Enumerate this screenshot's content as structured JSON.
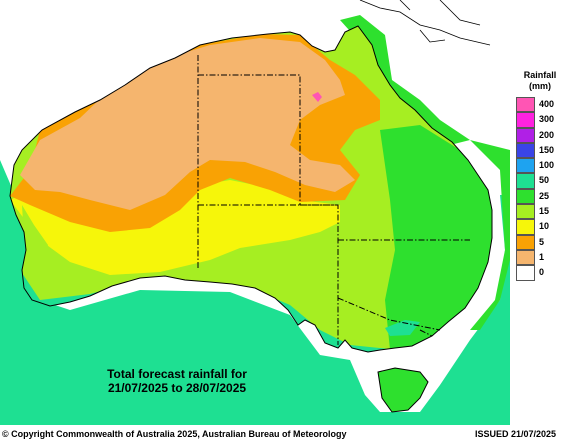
{
  "legend": {
    "title_line1": "Rainfall",
    "title_line2": "(mm)",
    "items": [
      {
        "label": "400",
        "color": "#ff55b4"
      },
      {
        "label": "300",
        "color": "#ff22e0"
      },
      {
        "label": "200",
        "color": "#b020e6"
      },
      {
        "label": "150",
        "color": "#3a44e6"
      },
      {
        "label": "100",
        "color": "#1ea3f0"
      },
      {
        "label": "50",
        "color": "#1ee092"
      },
      {
        "label": "25",
        "color": "#2ee02e"
      },
      {
        "label": "15",
        "color": "#a6ee22"
      },
      {
        "label": "10",
        "color": "#f6f60a"
      },
      {
        "label": "5",
        "color": "#f9a204"
      },
      {
        "label": "1",
        "color": "#f5b56e"
      },
      {
        "label": "0",
        "color": "#ffffff"
      }
    ]
  },
  "forecast": {
    "line1": "Total forecast rainfall for",
    "line2": "21/07/2025 to 28/07/2025"
  },
  "footer": {
    "copyright": "© Copyright Commonwealth of Australia 2025, Australian Bureau of Meteorology",
    "issued": "ISSUED 21/07/2025"
  }
}
